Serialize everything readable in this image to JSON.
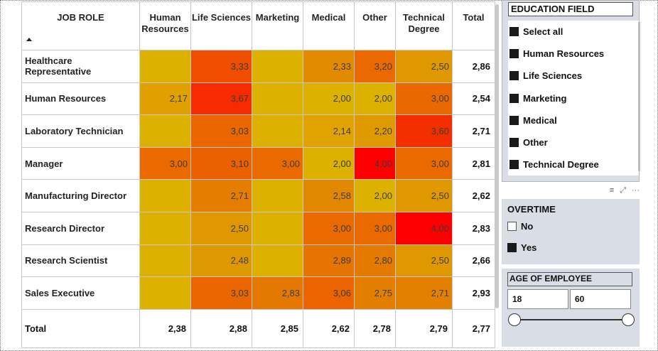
{
  "matrix": {
    "row_header_label": "JOB ROLE",
    "columns": [
      "Human Resources",
      "Life Sciences",
      "Marketing",
      "Medical",
      "Other",
      "Technical Degree",
      "Total"
    ],
    "rows": [
      {
        "label": "Healthcare Representative",
        "values": [
          "",
          "3,33",
          "",
          "2,33",
          "3,20",
          "2,50"
        ],
        "total": "2,86",
        "colors": [
          "#dcb100",
          "#ef4d00",
          "#dcb100",
          "#e28a00",
          "#ea6900",
          "#df9800"
        ]
      },
      {
        "label": "Human Resources",
        "values": [
          "2,17",
          "3,67",
          "",
          "2,00",
          "2,00",
          "3,00"
        ],
        "total": "2,54",
        "colors": [
          "#e0a100",
          "#f72a00",
          "#dcb100",
          "#dcb100",
          "#dcb100",
          "#ea6800"
        ]
      },
      {
        "label": "Laboratory Technician",
        "values": [
          "",
          "3,03",
          "",
          "2,14",
          "2,20",
          "3,60"
        ],
        "total": "2,71",
        "colors": [
          "#dcb100",
          "#ea6700",
          "#dcb100",
          "#e0a300",
          "#df9a00",
          "#f32f00"
        ]
      },
      {
        "label": "Manager",
        "values": [
          "3,00",
          "3,10",
          "3,00",
          "2,00",
          "4,00",
          "3,00"
        ],
        "total": "2,81",
        "colors": [
          "#ea6a00",
          "#eb6000",
          "#ea6a00",
          "#dcb100",
          "#ff0000",
          "#ea6a00"
        ]
      },
      {
        "label": "Manufacturing Director",
        "values": [
          "",
          "2,71",
          "",
          "2,58",
          "2,00",
          "2,50"
        ],
        "total": "2,62",
        "colors": [
          "#dcb100",
          "#e57d00",
          "#dcb100",
          "#e28800",
          "#dcb100",
          "#df9800"
        ]
      },
      {
        "label": "Research Director",
        "values": [
          "",
          "2,50",
          "",
          "3,00",
          "3,00",
          "4,00"
        ],
        "total": "2,83",
        "colors": [
          "#dcb100",
          "#df9800",
          "#dcb100",
          "#ea6a00",
          "#ea6a00",
          "#ff0000"
        ]
      },
      {
        "label": "Research Scientist",
        "values": [
          "",
          "2,48",
          "",
          "2,89",
          "2,80",
          "2,50"
        ],
        "total": "2,66",
        "colors": [
          "#dcb100",
          "#df9900",
          "#dcb100",
          "#e67400",
          "#e57a00",
          "#df9800"
        ]
      },
      {
        "label": "Sales Executive",
        "values": [
          "",
          "3,03",
          "2,83",
          "3,06",
          "2,75",
          "2,71"
        ],
        "total": "2,93",
        "colors": [
          "#dcb100",
          "#ea6700",
          "#e57800",
          "#eb6400",
          "#e47e00",
          "#e48000"
        ]
      }
    ],
    "total_row": {
      "label": "Total",
      "values": [
        "2,38",
        "2,88",
        "2,85",
        "2,62",
        "2,78",
        "2,79"
      ],
      "total": "2,77"
    }
  },
  "education_slicer": {
    "title": "EDUCATION FIELD",
    "items": [
      {
        "label": "Select all",
        "checked": true
      },
      {
        "label": "Human Resources",
        "checked": true
      },
      {
        "label": "Life Sciences",
        "checked": true
      },
      {
        "label": "Marketing",
        "checked": true
      },
      {
        "label": "Medical",
        "checked": true
      },
      {
        "label": "Other",
        "checked": true
      },
      {
        "label": "Technical Degree",
        "checked": true
      }
    ]
  },
  "toolbar": {
    "filter_icon": "≡",
    "focus_icon": "⤢",
    "more_icon": "···"
  },
  "overtime_slicer": {
    "title": "OVERTIME",
    "items": [
      {
        "label": "No",
        "checked": false
      },
      {
        "label": "Yes",
        "checked": true
      }
    ]
  },
  "age_slicer": {
    "title": "AGE OF EMPLOYEE",
    "min": "18",
    "max": "60"
  }
}
